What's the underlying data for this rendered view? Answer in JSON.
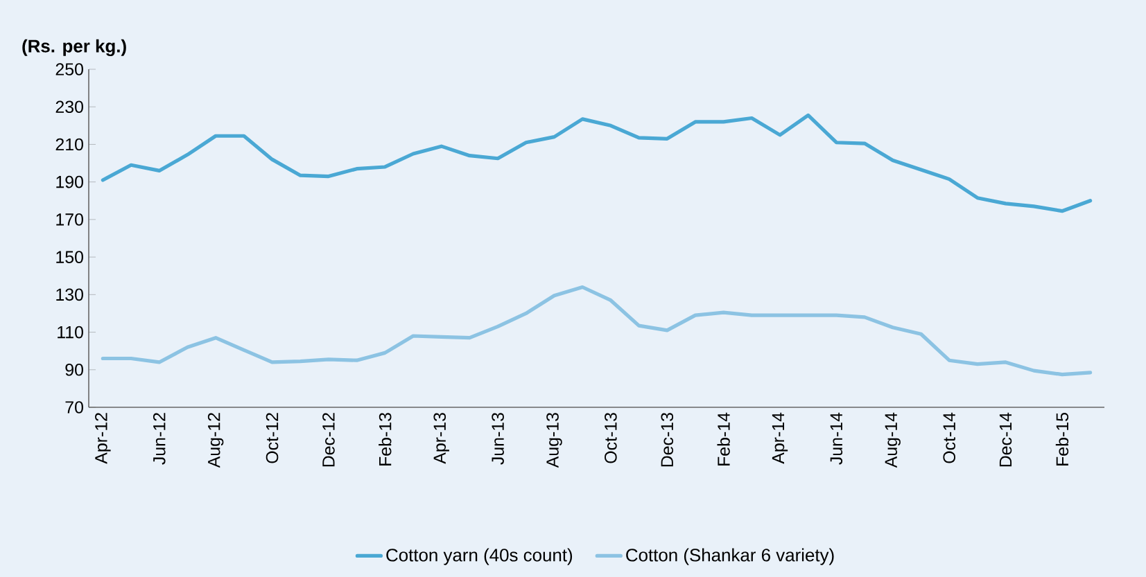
{
  "chart_data": {
    "type": "line",
    "ylabel": "(Rs. per kg.)",
    "categories": [
      "Apr-12",
      null,
      "Jun-12",
      null,
      "Aug-12",
      null,
      "Oct-12",
      null,
      "Dec-12",
      null,
      "Feb-13",
      null,
      "Apr-13",
      null,
      "Jun-13",
      null,
      "Aug-13",
      null,
      "Oct-13",
      null,
      "Dec-13",
      null,
      "Feb-14",
      null,
      "Apr-14",
      null,
      "Jun-14",
      null,
      "Aug-14",
      null,
      "Oct-14",
      null,
      "Dec-14",
      null,
      "Feb-15",
      null
    ],
    "series": [
      {
        "name": "Cotton yarn (40s count)",
        "color": "#4aa8d4",
        "values": [
          191,
          199,
          196,
          204.5,
          214.5,
          214.5,
          202,
          193.5,
          193,
          197,
          198,
          205,
          209,
          204,
          202.5,
          211,
          214,
          223.5,
          220,
          213.5,
          213,
          222,
          222,
          224,
          215,
          225.5,
          211,
          210.5,
          201.5,
          196.5,
          191.5,
          181.5,
          178.5,
          177,
          174.5,
          180
        ]
      },
      {
        "name": "Cotton (Shankar 6 variety)",
        "color": "#8cc3e3",
        "values": [
          96,
          96,
          94,
          102,
          107,
          100.5,
          94,
          94.5,
          95.5,
          95,
          99,
          108,
          107.5,
          107,
          113,
          120,
          129.5,
          134,
          127,
          113.5,
          111,
          119,
          120.5,
          119,
          119,
          119,
          119,
          118,
          112.5,
          109,
          95,
          93,
          94,
          89.5,
          87.5,
          88.5
        ]
      }
    ],
    "ylim": [
      70,
      250
    ],
    "yticks": [
      70,
      90,
      110,
      130,
      150,
      170,
      190,
      210,
      230,
      250
    ],
    "grid": false,
    "legend": "bottom",
    "marker": "none",
    "line_style": "solid"
  }
}
